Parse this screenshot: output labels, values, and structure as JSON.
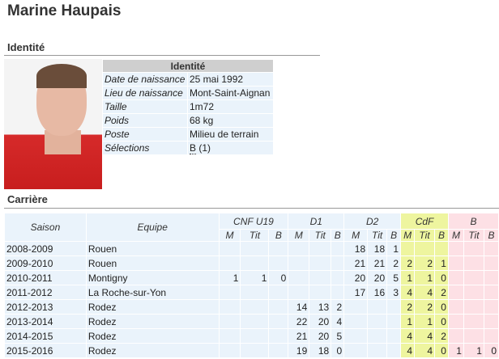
{
  "page_title": "Marine Haupais",
  "identity_section": {
    "heading": "Identité",
    "box_title": "Identité",
    "rows": [
      {
        "label": "Date de naissance",
        "value": "25 mai 1992"
      },
      {
        "label": "Lieu de naissance",
        "value": "Mont-Saint-Aignan"
      },
      {
        "label": "Taille",
        "value": "1m72"
      },
      {
        "label": "Poids",
        "value": "68 kg"
      },
      {
        "label": "Poste",
        "value": "Milieu de terrain"
      },
      {
        "label": "Sélections",
        "value_abbr": "B",
        "value": " (1)"
      }
    ]
  },
  "career_section": {
    "heading": "Carrière",
    "headers": {
      "season": "Saison",
      "team": "Equipe",
      "groups": [
        "CNF U19",
        "D1",
        "D2",
        "CdF",
        "B"
      ],
      "sub": [
        "M",
        "Tit",
        "B"
      ]
    },
    "rows": [
      {
        "season": "2008-2009",
        "team": "Rouen",
        "stats": [
          "",
          "",
          "",
          "",
          "",
          "",
          "18",
          "18",
          "1",
          "",
          "",
          "",
          "",
          "",
          ""
        ]
      },
      {
        "season": "2009-2010",
        "team": "Rouen",
        "stats": [
          "",
          "",
          "",
          "",
          "",
          "",
          "21",
          "21",
          "2",
          "2",
          "2",
          "1",
          "",
          "",
          ""
        ]
      },
      {
        "season": "2010-2011",
        "team": "Montigny",
        "stats": [
          "1",
          "1",
          "0",
          "",
          "",
          "",
          "20",
          "20",
          "5",
          "1",
          "1",
          "0",
          "",
          "",
          ""
        ]
      },
      {
        "season": "2011-2012",
        "team": "La Roche-sur-Yon",
        "stats": [
          "",
          "",
          "",
          "",
          "",
          "",
          "17",
          "16",
          "3",
          "4",
          "4",
          "2",
          "",
          "",
          ""
        ]
      },
      {
        "season": "2012-2013",
        "team": "Rodez",
        "stats": [
          "",
          "",
          "",
          "14",
          "13",
          "2",
          "",
          "",
          "",
          "2",
          "2",
          "0",
          "",
          "",
          ""
        ]
      },
      {
        "season": "2013-2014",
        "team": "Rodez",
        "stats": [
          "",
          "",
          "",
          "22",
          "20",
          "4",
          "",
          "",
          "",
          "1",
          "1",
          "0",
          "",
          "",
          ""
        ]
      },
      {
        "season": "2014-2015",
        "team": "Rodez",
        "stats": [
          "",
          "",
          "",
          "21",
          "20",
          "5",
          "",
          "",
          "",
          "4",
          "4",
          "2",
          "",
          "",
          ""
        ]
      },
      {
        "season": "2015-2016",
        "team": "Rodez",
        "stats": [
          "",
          "",
          "",
          "19",
          "18",
          "0",
          "",
          "",
          "",
          "4",
          "4",
          "0",
          "1",
          "1",
          "0"
        ]
      }
    ]
  },
  "colors": {
    "league_bg": "#eaf3fb",
    "cup_bg": "#eef59f",
    "national_bg": "#fde0e5",
    "header_bg": "#cfcfcf"
  }
}
